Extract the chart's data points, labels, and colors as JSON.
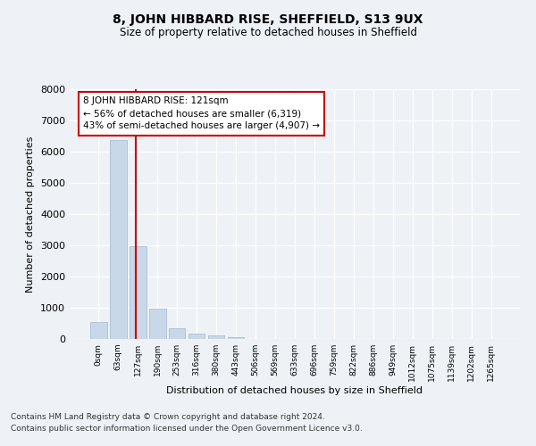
{
  "title1": "8, JOHN HIBBARD RISE, SHEFFIELD, S13 9UX",
  "title2": "Size of property relative to detached houses in Sheffield",
  "xlabel": "Distribution of detached houses by size in Sheffield",
  "ylabel": "Number of detached properties",
  "bin_labels": [
    "0sqm",
    "63sqm",
    "127sqm",
    "190sqm",
    "253sqm",
    "316sqm",
    "380sqm",
    "443sqm",
    "506sqm",
    "569sqm",
    "633sqm",
    "696sqm",
    "759sqm",
    "822sqm",
    "886sqm",
    "949sqm",
    "1012sqm",
    "1075sqm",
    "1139sqm",
    "1202sqm",
    "1265sqm"
  ],
  "bar_values": [
    550,
    6380,
    2960,
    960,
    340,
    165,
    110,
    70,
    0,
    0,
    0,
    0,
    0,
    0,
    0,
    0,
    0,
    0,
    0,
    0,
    0
  ],
  "bar_color": "#c8d8e8",
  "bar_edge_color": "#a0b8d0",
  "vline_x": 1.92,
  "vline_color": "#cc0000",
  "annotation_text": "8 JOHN HIBBARD RISE: 121sqm\n← 56% of detached houses are smaller (6,319)\n43% of semi-detached houses are larger (4,907) →",
  "annotation_box_color": "#cc0000",
  "ylim": [
    0,
    8000
  ],
  "yticks": [
    0,
    1000,
    2000,
    3000,
    4000,
    5000,
    6000,
    7000,
    8000
  ],
  "footer_line1": "Contains HM Land Registry data © Crown copyright and database right 2024.",
  "footer_line2": "Contains public sector information licensed under the Open Government Licence v3.0.",
  "background_color": "#eef2f7",
  "plot_background_color": "#eef2f7"
}
